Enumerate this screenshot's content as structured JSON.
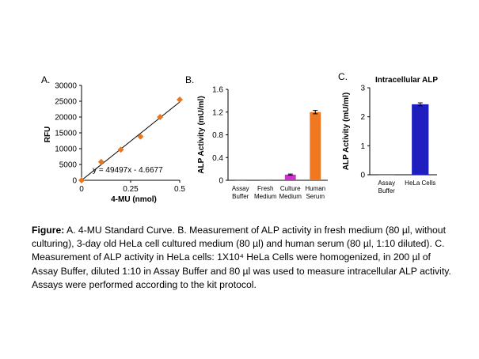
{
  "chart_data": [
    {
      "panel_letter": "A.",
      "type": "scatter",
      "xlabel": "4-MU (nmol)",
      "ylabel": "RFU",
      "xlim": [
        0,
        0.5
      ],
      "ylim": [
        0,
        30000
      ],
      "xticks": [
        "0",
        "0.25",
        "0.5"
      ],
      "yticks": [
        "0",
        "5000",
        "10000",
        "15000",
        "20000",
        "25000",
        "30000"
      ],
      "points": [
        {
          "x": 0,
          "y": 0
        },
        {
          "x": 0.1,
          "y": 5800
        },
        {
          "x": 0.2,
          "y": 9700
        },
        {
          "x": 0.3,
          "y": 13800
        },
        {
          "x": 0.4,
          "y": 20000
        },
        {
          "x": 0.5,
          "y": 25500
        }
      ],
      "trendline": {
        "slope": 49497,
        "intercept": -4.6677
      },
      "equation": "y = 49497x  - 4.6677",
      "marker_color": "#E87722"
    },
    {
      "panel_letter": "B.",
      "type": "bar",
      "ylabel": "ALP Activity (mU/ml)",
      "ylim": [
        0,
        1.6
      ],
      "yticks": [
        "0",
        "0.4",
        "0.8",
        "1.2",
        "1.6"
      ],
      "categories": [
        [
          "Assay",
          "Buffer"
        ],
        [
          "Fresh",
          "Medium"
        ],
        [
          "Culture",
          "Medium"
        ],
        [
          "Human",
          "Serum"
        ]
      ],
      "values": [
        0.0,
        0.0,
        0.1,
        1.2
      ],
      "errors": [
        0.0,
        0.0,
        0.01,
        0.03
      ],
      "colors": [
        "#7F7F7F",
        "#7F7F7F",
        "#CC33CC",
        "#F07820"
      ]
    },
    {
      "panel_letter": "C.",
      "type": "bar",
      "title": "Intracellular ALP",
      "ylabel": "ALP Activity  (mU/ml)",
      "ylim": [
        0,
        3
      ],
      "yticks": [
        "0",
        "1",
        "2",
        "3"
      ],
      "categories": [
        [
          "Assay",
          "Buffer"
        ],
        [
          "HeLa Cells"
        ]
      ],
      "values": [
        0.0,
        2.43
      ],
      "errors": [
        0.0,
        0.05
      ],
      "colors": [
        "#7F7F7F",
        "#1F1FC0"
      ]
    }
  ],
  "caption": {
    "lead": "Figure:",
    "text": " A. 4-MU Standard Curve. B. Measurement of ALP activity in fresh medium (80 µl, without culturing), 3-day old HeLa cell cultured medium (80 µl) and human serum (80 µl, 1:10 diluted). C. Measurement of ALP activity in HeLa cells: 1X10⁴ HeLa Cells were homogenized, in 200 µl of Assay Buffer, diluted 1:10 in Assay Buffer and 80 µl was used to measure intracellular ALP activity. Assays were performed according to the kit protocol."
  }
}
